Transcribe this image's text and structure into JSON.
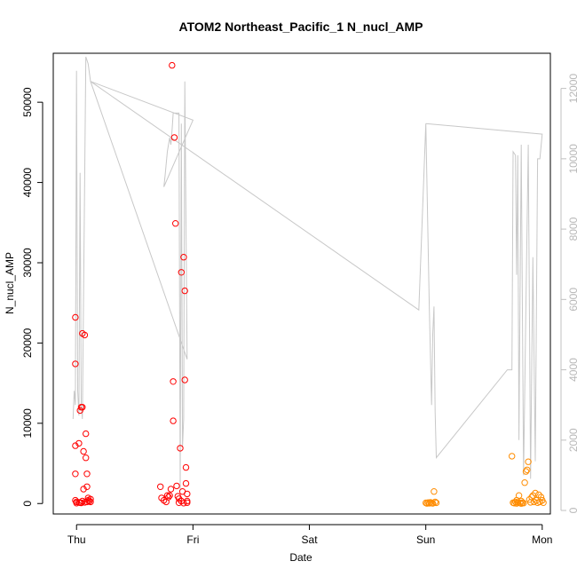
{
  "chart_data": {
    "type": "scatter",
    "title": "ATOM2 Northeast_Pacific_1 N_nucl_AMP",
    "xlabel": "Date",
    "ylabel": "N_nucl_AMP",
    "x_ticks": [
      "Thu",
      "Fri",
      "Sat",
      "Sun",
      "Mon"
    ],
    "x_range_days": [
      -0.2,
      4.07
    ],
    "y_left": {
      "range": [
        -1300,
        56100
      ],
      "ticks": [
        0,
        10000,
        20000,
        30000,
        40000,
        50000
      ]
    },
    "y_right": {
      "range": [
        -100,
        13000
      ],
      "ticks": [
        0,
        2000,
        4000,
        6000,
        8000,
        10000,
        12000
      ],
      "color": "#c0c0c0"
    },
    "colors": {
      "red": "#ff0000",
      "orange": "#ff8c00",
      "line": "#c8c8c8"
    },
    "series": [
      {
        "color": "red",
        "points": [
          [
            -0.01,
            23200
          ],
          [
            -0.01,
            17400
          ],
          [
            -0.01,
            7200
          ],
          [
            -0.01,
            3700
          ],
          [
            -0.01,
            400
          ],
          [
            0.0,
            200
          ],
          [
            0.0,
            50
          ],
          [
            0.02,
            7500
          ],
          [
            0.03,
            11600
          ],
          [
            0.04,
            12000
          ],
          [
            0.05,
            12000
          ],
          [
            0.05,
            21200
          ],
          [
            0.06,
            6500
          ],
          [
            0.06,
            1800
          ],
          [
            0.07,
            21000
          ],
          [
            0.08,
            8700
          ],
          [
            0.08,
            5700
          ],
          [
            0.09,
            3700
          ],
          [
            0.09,
            2100
          ],
          [
            0.1,
            700
          ],
          [
            0.1,
            400
          ],
          [
            0.11,
            300
          ],
          [
            0.12,
            550
          ],
          [
            0.12,
            200
          ],
          [
            0.02,
            150
          ],
          [
            0.03,
            100
          ],
          [
            0.04,
            80
          ],
          [
            0.05,
            300
          ],
          [
            0.07,
            150
          ],
          [
            0.09,
            200
          ],
          [
            0.72,
            2100
          ],
          [
            0.73,
            700
          ],
          [
            0.75,
            400
          ],
          [
            0.77,
            200
          ],
          [
            0.78,
            1000
          ],
          [
            0.79,
            800
          ],
          [
            0.8,
            1000
          ],
          [
            0.81,
            1800
          ],
          [
            0.82,
            54600
          ],
          [
            0.83,
            10300
          ],
          [
            0.83,
            15200
          ],
          [
            0.84,
            45600
          ],
          [
            0.85,
            34900
          ],
          [
            0.86,
            2200
          ],
          [
            0.87,
            900
          ],
          [
            0.88,
            100
          ],
          [
            0.89,
            6900
          ],
          [
            0.9,
            28800
          ],
          [
            0.91,
            1500
          ],
          [
            0.92,
            30700
          ],
          [
            0.93,
            26500
          ],
          [
            0.93,
            15400
          ],
          [
            0.94,
            4500
          ],
          [
            0.94,
            2500
          ],
          [
            0.95,
            1200
          ],
          [
            0.95,
            300
          ],
          [
            0.95,
            100
          ],
          [
            0.88,
            600
          ],
          [
            0.9,
            300
          ],
          [
            0.92,
            50
          ]
        ]
      },
      {
        "color": "orange",
        "points": [
          [
            3.0,
            80
          ],
          [
            3.01,
            20
          ],
          [
            3.02,
            120
          ],
          [
            3.03,
            40
          ],
          [
            3.04,
            150
          ],
          [
            3.05,
            60
          ],
          [
            3.06,
            30
          ],
          [
            3.07,
            1500
          ],
          [
            3.08,
            200
          ],
          [
            3.09,
            90
          ],
          [
            3.74,
            5900
          ],
          [
            3.75,
            100
          ],
          [
            3.76,
            50
          ],
          [
            3.77,
            200
          ],
          [
            3.78,
            400
          ],
          [
            3.79,
            150
          ],
          [
            3.8,
            1000
          ],
          [
            3.81,
            80
          ],
          [
            3.82,
            300
          ],
          [
            3.83,
            100
          ],
          [
            3.84,
            60
          ],
          [
            3.85,
            2600
          ],
          [
            3.86,
            4000
          ],
          [
            3.87,
            4200
          ],
          [
            3.88,
            5200
          ],
          [
            3.89,
            500
          ],
          [
            3.9,
            150
          ],
          [
            3.91,
            800
          ],
          [
            3.92,
            1000
          ],
          [
            3.93,
            200
          ],
          [
            3.94,
            1300
          ],
          [
            3.95,
            400
          ],
          [
            3.96,
            100
          ],
          [
            3.97,
            1100
          ],
          [
            3.98,
            200
          ],
          [
            3.99,
            800
          ],
          [
            4.0,
            400
          ],
          [
            4.01,
            100
          ],
          [
            3.78,
            20
          ],
          [
            3.82,
            10
          ]
        ]
      }
    ],
    "line_series": {
      "axis": "right",
      "color": "line",
      "points": [
        [
          -0.03,
          2600
        ],
        [
          -0.02,
          3400
        ],
        [
          -0.01,
          3000
        ],
        [
          0.0,
          12500
        ],
        [
          0.01,
          3400
        ],
        [
          0.02,
          2700
        ],
        [
          0.03,
          9600
        ],
        [
          0.04,
          3000
        ],
        [
          0.05,
          2600
        ],
        [
          0.08,
          12900
        ],
        [
          0.1,
          12700
        ],
        [
          0.12,
          12200
        ],
        [
          0.95,
          4300
        ],
        [
          0.93,
          12200
        ],
        [
          0.92,
          2600
        ],
        [
          0.91,
          1800
        ],
        [
          0.9,
          11000
        ],
        [
          0.89,
          600
        ],
        [
          0.88,
          11300
        ],
        [
          0.87,
          11300
        ],
        [
          0.85,
          11300
        ],
        [
          0.83,
          11300
        ],
        [
          0.82,
          10800
        ],
        [
          0.81,
          10400
        ],
        [
          0.8,
          10600
        ],
        [
          0.78,
          10200
        ],
        [
          0.76,
          9500
        ],
        [
          0.75,
          9200
        ],
        [
          1.0,
          11100
        ],
        [
          0.12,
          12200
        ],
        [
          2.94,
          5700
        ],
        [
          3.0,
          11000
        ],
        [
          3.03,
          5800
        ],
        [
          3.05,
          3000
        ],
        [
          3.06,
          5000
        ],
        [
          3.07,
          5800
        ],
        [
          3.08,
          2800
        ],
        [
          3.09,
          1500
        ],
        [
          3.7,
          4000
        ],
        [
          3.74,
          4000
        ],
        [
          3.75,
          10200
        ],
        [
          3.77,
          10100
        ],
        [
          3.78,
          6700
        ],
        [
          3.79,
          10100
        ],
        [
          3.8,
          2000
        ],
        [
          3.82,
          10400
        ],
        [
          3.84,
          1000
        ],
        [
          3.86,
          5900
        ],
        [
          3.88,
          10400
        ],
        [
          3.9,
          900
        ],
        [
          3.92,
          7200
        ],
        [
          3.94,
          1400
        ],
        [
          3.96,
          10000
        ],
        [
          3.98,
          10000
        ],
        [
          4.0,
          10700
        ],
        [
          3.0,
          11000
        ]
      ]
    }
  }
}
